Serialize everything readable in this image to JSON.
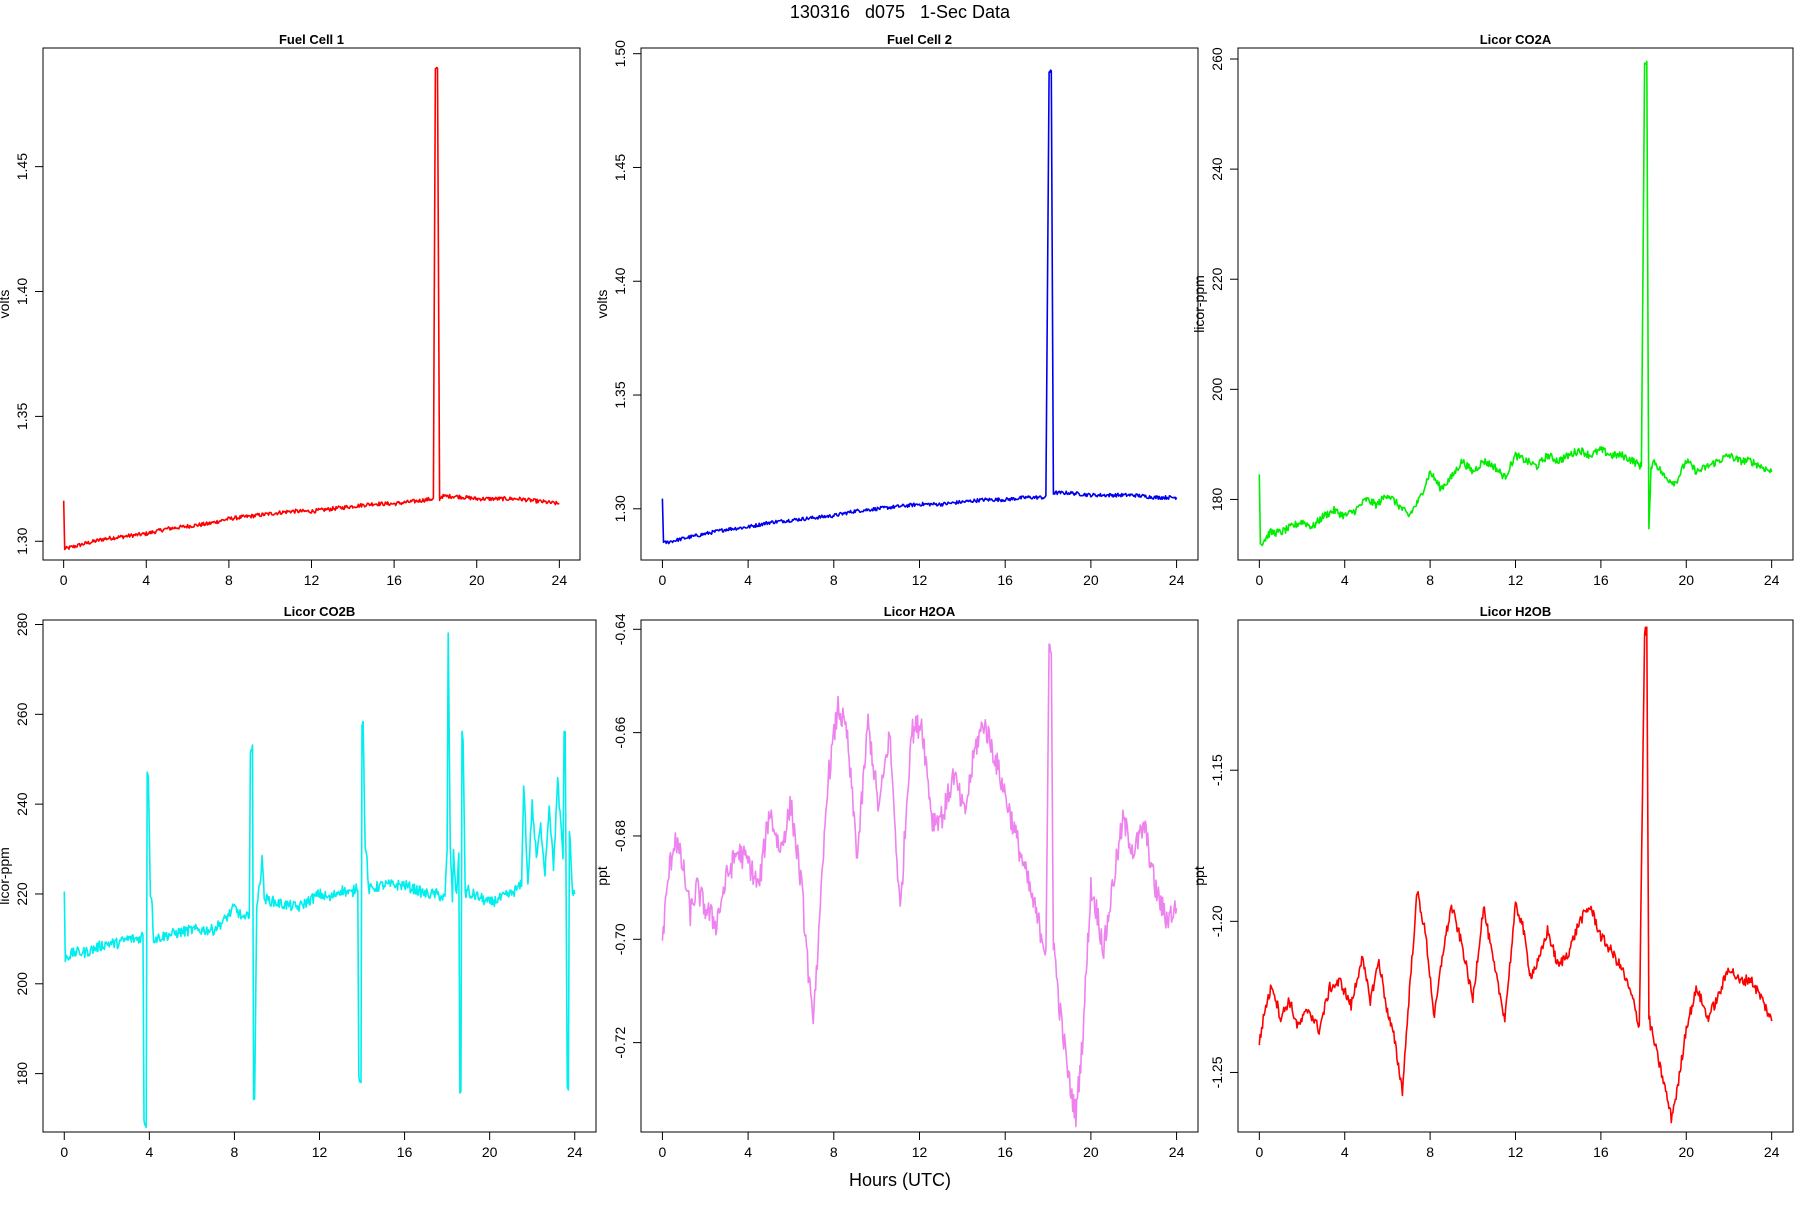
{
  "figure": {
    "title": "130316   d075   1-Sec Data",
    "xlabel": "Hours (UTC)"
  },
  "chart_data": [
    {
      "type": "line",
      "title": "Fuel Cell 1",
      "ylabel": "volts",
      "xlabel": "",
      "xlim": [
        -1,
        25
      ],
      "ylim": [
        1.2925,
        1.4975
      ],
      "xticks": [
        0,
        4,
        8,
        12,
        16,
        20,
        24
      ],
      "yticks": [
        1.3,
        1.35,
        1.4,
        1.45
      ],
      "ytick_labels": [
        "1.30",
        "1.35",
        "1.40",
        "1.45"
      ],
      "color": "#ff0000",
      "noise": 0.0008,
      "x": [
        0,
        0.05,
        0.1,
        1,
        2,
        3,
        4,
        5,
        6,
        7,
        8,
        9,
        10,
        11,
        12,
        13,
        14,
        15,
        16,
        17,
        17.9,
        18.0,
        18.1,
        18.2,
        18.3,
        19,
        20,
        21,
        22,
        23,
        24
      ],
      "y": [
        1.316,
        1.297,
        1.297,
        1.299,
        1.301,
        1.302,
        1.303,
        1.305,
        1.306,
        1.307,
        1.309,
        1.31,
        1.311,
        1.312,
        1.312,
        1.313,
        1.314,
        1.315,
        1.315,
        1.316,
        1.317,
        1.489,
        1.489,
        1.317,
        1.318,
        1.318,
        1.317,
        1.317,
        1.317,
        1.316,
        1.315
      ]
    },
    {
      "type": "line",
      "title": "Fuel Cell 2",
      "ylabel": "volts",
      "xlabel": "",
      "xlim": [
        -1,
        25
      ],
      "ylim": [
        1.2775,
        1.5025
      ],
      "xticks": [
        0,
        4,
        8,
        12,
        16,
        20,
        24
      ],
      "yticks": [
        1.3,
        1.35,
        1.4,
        1.45,
        1.5
      ],
      "ytick_labels": [
        "1.30",
        "1.35",
        "1.40",
        "1.45",
        "1.50"
      ],
      "color": "#0000ee",
      "noise": 0.0008,
      "x": [
        0,
        0.05,
        0.1,
        1,
        2,
        3,
        4,
        5,
        6,
        7,
        8,
        9,
        10,
        11,
        12,
        13,
        14,
        15,
        16,
        17,
        17.9,
        18.05,
        18.15,
        18.25,
        18.35,
        19,
        20,
        21,
        22,
        23,
        24
      ],
      "y": [
        1.305,
        1.285,
        1.285,
        1.287,
        1.289,
        1.291,
        1.292,
        1.294,
        1.295,
        1.296,
        1.297,
        1.299,
        1.3,
        1.301,
        1.302,
        1.302,
        1.303,
        1.304,
        1.304,
        1.305,
        1.305,
        1.492,
        1.492,
        1.307,
        1.307,
        1.307,
        1.306,
        1.306,
        1.306,
        1.305,
        1.305
      ]
    },
    {
      "type": "line",
      "title": "Licor CO2A",
      "ylabel": "licor-ppm",
      "xlabel": "",
      "xlim": [
        -1,
        25
      ],
      "ylim": [
        169,
        262
      ],
      "xticks": [
        0,
        4,
        8,
        12,
        16,
        20,
        24
      ],
      "yticks": [
        180,
        200,
        220,
        240,
        260
      ],
      "ytick_labels": [
        "180",
        "200",
        "220",
        "240",
        "260"
      ],
      "color": "#00ee00",
      "noise": 0.7,
      "x": [
        0,
        0.05,
        0.1,
        0.5,
        1,
        1.5,
        2,
        2.5,
        3,
        3.5,
        4,
        4.5,
        5,
        5.5,
        6,
        6.5,
        7,
        7.5,
        8,
        8.5,
        9,
        9.5,
        10,
        10.5,
        11,
        11.5,
        12,
        12.5,
        13,
        13.5,
        14,
        14.5,
        15,
        15.5,
        16,
        16.5,
        17,
        17.5,
        17.9,
        18.05,
        18.15,
        18.25,
        18.35,
        18.5,
        19,
        19.5,
        20,
        20.5,
        21,
        21.5,
        22,
        22.5,
        23,
        23.5,
        24
      ],
      "y": [
        185,
        172,
        172,
        174,
        174,
        175,
        176,
        175,
        177,
        178,
        177,
        178,
        180,
        179,
        181,
        179,
        177,
        180,
        185,
        182,
        184,
        187,
        185,
        187,
        186,
        184,
        188,
        187,
        186,
        188,
        187,
        188,
        189,
        188,
        189,
        188,
        188,
        187,
        186,
        259,
        259,
        174,
        186,
        187,
        184,
        183,
        187,
        185,
        186,
        187,
        188,
        187,
        187,
        186,
        185
      ]
    },
    {
      "type": "line",
      "title": "Licor CO2B",
      "ylabel": "licor-ppm",
      "xlabel": "",
      "xlim": [
        -1,
        25
      ],
      "ylim": [
        167,
        281
      ],
      "xticks": [
        0,
        4,
        8,
        12,
        16,
        20,
        24
      ],
      "yticks": [
        180,
        200,
        220,
        240,
        260,
        280
      ],
      "ytick_labels": [
        "180",
        "200",
        "220",
        "240",
        "260",
        "280"
      ],
      "color": "#00eeee",
      "noise": 1.2,
      "x": [
        0,
        0.05,
        0.1,
        0.5,
        1,
        1.5,
        2,
        2.5,
        3,
        3.5,
        3.7,
        3.75,
        3.85,
        3.9,
        3.95,
        4.05,
        4.1,
        4.2,
        5,
        6,
        7,
        7.5,
        8,
        8.5,
        8.7,
        8.75,
        8.85,
        8.9,
        8.95,
        9.05,
        9.1,
        9.2,
        9.3,
        9.4,
        10,
        11,
        12,
        12.5,
        13,
        13.5,
        13.8,
        13.85,
        13.95,
        14.0,
        14.05,
        14.15,
        14.2,
        14.3,
        15,
        16,
        16.5,
        17,
        17.5,
        17.9,
        18.0,
        18.05,
        18.15,
        18.25,
        18.3,
        18.45,
        18.55,
        18.6,
        18.65,
        18.7,
        18.75,
        18.85,
        19.0,
        19.05,
        19.2,
        20,
        21,
        21.5,
        21.6,
        21.8,
        22,
        22.2,
        22.4,
        22.6,
        22.8,
        23,
        23.2,
        23.45,
        23.5,
        23.55,
        23.65,
        23.7,
        23.75,
        23.9,
        24
      ],
      "y": [
        220,
        206,
        206,
        207,
        207,
        208,
        209,
        209,
        210,
        210,
        211,
        169,
        169,
        247,
        247,
        220,
        220,
        210,
        211,
        212,
        212,
        214,
        217,
        214,
        216,
        252,
        252,
        174,
        174,
        218,
        219,
        222,
        229,
        219,
        218,
        217,
        220,
        219,
        221,
        220,
        222,
        179,
        179,
        258,
        258,
        230,
        230,
        221,
        222,
        222,
        221,
        220,
        220,
        219,
        230,
        278,
        230,
        219,
        229,
        219,
        230,
        176,
        176,
        255,
        255,
        220,
        221,
        219,
        220,
        218,
        220,
        222,
        245,
        222,
        240,
        228,
        235,
        225,
        240,
        226,
        245,
        228,
        256,
        256,
        176,
        176,
        235,
        220,
        220
      ]
    },
    {
      "type": "line",
      "title": "Licor H2OA",
      "ylabel": "ppt",
      "xlabel": "",
      "xlim": [
        -1,
        25
      ],
      "ylim": [
        -0.7373,
        -0.6382
      ],
      "xticks": [
        0,
        4,
        8,
        12,
        16,
        20,
        24
      ],
      "yticks": [
        -0.72,
        -0.7,
        -0.68,
        -0.66,
        -0.64
      ],
      "ytick_labels": [
        "-0.72",
        "-0.70",
        "-0.68",
        "-0.66",
        "-0.64"
      ],
      "color": "#ee82ee",
      "noise": 0.0025,
      "x": [
        0,
        0.3,
        0.6,
        1.0,
        1.3,
        1.6,
        2.0,
        2.5,
        3.0,
        3.5,
        4.0,
        4.5,
        5.0,
        5.5,
        6.0,
        6.5,
        7.0,
        7.3,
        7.7,
        8.2,
        8.6,
        9.1,
        9.6,
        10.1,
        10.6,
        11.1,
        11.6,
        12.1,
        12.6,
        13.1,
        13.6,
        14.1,
        14.6,
        15.0,
        15.4,
        16.0,
        16.5,
        17.0,
        17.5,
        17.9,
        18.05,
        18.15,
        18.25,
        18.5,
        19.0,
        19.3,
        19.6,
        20.0,
        20.3,
        20.6,
        21.0,
        21.5,
        22.0,
        22.5,
        23.0,
        23.5,
        24.0
      ],
      "y": [
        -0.7,
        -0.687,
        -0.68,
        -0.687,
        -0.695,
        -0.69,
        -0.694,
        -0.697,
        -0.688,
        -0.683,
        -0.685,
        -0.69,
        -0.675,
        -0.683,
        -0.674,
        -0.69,
        -0.716,
        -0.7,
        -0.67,
        -0.655,
        -0.66,
        -0.684,
        -0.658,
        -0.675,
        -0.66,
        -0.695,
        -0.66,
        -0.658,
        -0.677,
        -0.676,
        -0.668,
        -0.676,
        -0.663,
        -0.658,
        -0.663,
        -0.672,
        -0.68,
        -0.688,
        -0.696,
        -0.702,
        -0.645,
        -0.645,
        -0.7,
        -0.712,
        -0.728,
        -0.734,
        -0.72,
        -0.69,
        -0.695,
        -0.702,
        -0.69,
        -0.677,
        -0.683,
        -0.678,
        -0.69,
        -0.696,
        -0.694
      ]
    },
    {
      "type": "line",
      "title": "Licor H2OB",
      "ylabel": "ppt",
      "xlabel": "",
      "xlim": [
        -1,
        25
      ],
      "ylim": [
        -1.2697,
        -1.1003
      ],
      "xticks": [
        0,
        4,
        8,
        12,
        16,
        20,
        24
      ],
      "yticks": [
        -1.25,
        -1.2,
        -1.15
      ],
      "ytick_labels": [
        "-1.25",
        "-1.20",
        "-1.15"
      ],
      "color": "#ff0000",
      "noise": 0.0018,
      "x": [
        0,
        0.3,
        0.6,
        1.0,
        1.4,
        1.8,
        2.3,
        2.8,
        3.3,
        3.8,
        4.3,
        4.8,
        5.2,
        5.6,
        6.0,
        6.3,
        6.7,
        7.0,
        7.4,
        7.8,
        8.2,
        8.6,
        9.0,
        9.5,
        10.0,
        10.5,
        11.0,
        11.5,
        12.0,
        12.3,
        12.7,
        13.1,
        13.5,
        14.0,
        14.5,
        15.0,
        15.5,
        16.0,
        16.5,
        17.0,
        17.5,
        17.8,
        18.05,
        18.15,
        18.25,
        18.5,
        19.0,
        19.3,
        19.6,
        20.0,
        20.5,
        21.0,
        21.5,
        22.0,
        22.5,
        23.0,
        23.5,
        24.0
      ],
      "y": [
        -1.24,
        -1.228,
        -1.221,
        -1.232,
        -1.226,
        -1.235,
        -1.229,
        -1.236,
        -1.222,
        -1.22,
        -1.228,
        -1.212,
        -1.226,
        -1.213,
        -1.23,
        -1.238,
        -1.256,
        -1.226,
        -1.19,
        -1.205,
        -1.232,
        -1.21,
        -1.195,
        -1.208,
        -1.226,
        -1.195,
        -1.215,
        -1.232,
        -1.195,
        -1.2,
        -1.218,
        -1.213,
        -1.203,
        -1.215,
        -1.21,
        -1.2,
        -1.195,
        -1.205,
        -1.21,
        -1.216,
        -1.226,
        -1.235,
        -1.104,
        -1.104,
        -1.232,
        -1.24,
        -1.255,
        -1.265,
        -1.255,
        -1.235,
        -1.222,
        -1.232,
        -1.225,
        -1.215,
        -1.22,
        -1.219,
        -1.225,
        -1.233
      ]
    }
  ]
}
